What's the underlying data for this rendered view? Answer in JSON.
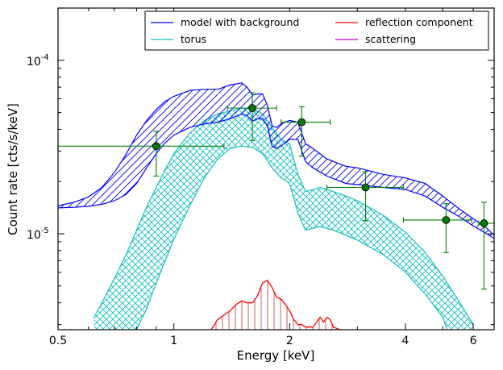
{
  "chart_data": {
    "type": "line",
    "xlabel": "Energy [keV]",
    "ylabel": "Count rate [cts/s/keV]",
    "x_scale": "log",
    "y_scale": "log",
    "xlim": [
      0.5,
      6.8
    ],
    "ylim": [
      2.8e-06,
      0.0002
    ],
    "x_ticks": [
      {
        "value": 0.5,
        "label": "0.5"
      },
      {
        "value": 1,
        "label": "1"
      },
      {
        "value": 2,
        "label": "2"
      },
      {
        "value": 4,
        "label": "4"
      },
      {
        "value": 6,
        "label": "6"
      }
    ],
    "y_ticks": [
      {
        "value": 1e-05,
        "base": "10",
        "exp": "-5"
      },
      {
        "value": 0.0001,
        "base": "10",
        "exp": "-4"
      }
    ],
    "legend_position": "top-right",
    "colors": {
      "model": "#0000ff",
      "torus": "#17bfbf",
      "reflection": "#ff0000",
      "scattering": "#bf00bf",
      "data": "#008000",
      "marker": "#007a00"
    },
    "series": [
      {
        "name": "model with background",
        "kind": "band",
        "x": [
          0.5,
          0.55,
          0.6,
          0.65,
          0.7,
          0.75,
          0.8,
          0.85,
          0.9,
          0.95,
          1.0,
          1.1,
          1.2,
          1.3,
          1.4,
          1.5,
          1.55,
          1.6,
          1.65,
          1.7,
          1.75,
          1.8,
          1.85,
          1.9,
          2.0,
          2.1,
          2.2,
          2.3,
          2.5,
          2.8,
          3.0,
          3.5,
          4.0,
          4.5,
          5.0,
          5.5,
          6.0,
          6.5,
          6.8
        ],
        "upper": [
          1.45e-05,
          1.52e-05,
          1.63e-05,
          1.85e-05,
          2.25e-05,
          2.85e-05,
          3.7e-05,
          4.5e-05,
          5.2e-05,
          5.8e-05,
          6.2e-05,
          6.7e-05,
          6.8e-05,
          6.8e-05,
          7.2e-05,
          7.4e-05,
          7e-05,
          6.3e-05,
          6.4e-05,
          6.4e-05,
          5.5e-05,
          4.2e-05,
          4.1e-05,
          4.3e-05,
          4.5e-05,
          4.4e-05,
          3.3e-05,
          3.1e-05,
          2.7e-05,
          2.45e-05,
          2.4e-05,
          2.2e-05,
          2.1e-05,
          1.95e-05,
          1.65e-05,
          1.4e-05,
          1.22e-05,
          1.08e-05,
          9.8e-06
        ],
        "lower": [
          1.41e-05,
          1.42e-05,
          1.44e-05,
          1.48e-05,
          1.55e-05,
          1.68e-05,
          1.95e-05,
          2.4e-05,
          2.9e-05,
          3.35e-05,
          3.7e-05,
          4.1e-05,
          4.3e-05,
          4.4e-05,
          4.6e-05,
          4.9e-05,
          4.8e-05,
          4.45e-05,
          4.6e-05,
          4.6e-05,
          4.2e-05,
          3.2e-05,
          3.1e-05,
          3.2e-05,
          3.5e-05,
          3.5e-05,
          2.6e-05,
          2.4e-05,
          2.15e-05,
          1.95e-05,
          1.92e-05,
          1.85e-05,
          1.8e-05,
          1.65e-05,
          1.42e-05,
          1.26e-05,
          1.11e-05,
          1e-05,
          9.4e-06
        ]
      },
      {
        "name": "torus",
        "kind": "band",
        "x": [
          0.62,
          0.65,
          0.7,
          0.75,
          0.8,
          0.85,
          0.9,
          0.95,
          1.0,
          1.1,
          1.2,
          1.3,
          1.4,
          1.5,
          1.6,
          1.7,
          1.8,
          1.9,
          2.0,
          2.1,
          2.2,
          2.4,
          2.6,
          2.8,
          3.0,
          3.5,
          4.0,
          4.5,
          5.0,
          5.5,
          5.8,
          6.0
        ],
        "upper": [
          3.3e-06,
          4e-06,
          5.5e-06,
          7.5e-06,
          1.05e-05,
          1.43e-05,
          1.85e-05,
          2.35e-05,
          2.9e-05,
          3.8e-05,
          4.5e-05,
          4.9e-05,
          5.1e-05,
          5.3e-05,
          5.3e-05,
          4.9e-05,
          4.1e-05,
          3.5e-05,
          3.3e-05,
          2.2e-05,
          1.75e-05,
          1.85e-05,
          1.75e-05,
          1.65e-05,
          1.55e-05,
          1.28e-05,
          1.02e-05,
          7.8e-06,
          5.7e-06,
          4.1e-06,
          3.4e-06,
          3e-06
        ],
        "lower": [
          null,
          null,
          null,
          null,
          2.8e-06,
          3.7e-06,
          5.2e-06,
          7e-06,
          9.3e-06,
          1.45e-05,
          2.1e-05,
          2.7e-05,
          3.1e-05,
          3.2e-05,
          3.15e-05,
          2.9e-05,
          2.4e-05,
          2.1e-05,
          1.95e-05,
          1.32e-05,
          1.05e-05,
          1.1e-05,
          1.05e-05,
          9.8e-06,
          9.2e-06,
          7.6e-06,
          6e-06,
          4.5e-06,
          3.3e-06,
          null,
          null,
          null
        ]
      },
      {
        "name": "reflection component",
        "kind": "line",
        "x": [
          1.25,
          1.3,
          1.4,
          1.45,
          1.5,
          1.55,
          1.6,
          1.65,
          1.7,
          1.75,
          1.8,
          1.85,
          1.9,
          1.95,
          2.0,
          2.05,
          2.1,
          2.15,
          2.2,
          2.3,
          2.4,
          2.45,
          2.5,
          2.55,
          2.6,
          2.7
        ],
        "y": [
          2.8e-06,
          3.2e-06,
          3.6e-06,
          3.9e-06,
          4.1e-06,
          4e-06,
          4e-06,
          4.4e-06,
          5.2e-06,
          5.4e-06,
          4.9e-06,
          4.3e-06,
          4.2e-06,
          3.9e-06,
          3.6e-06,
          3.2e-06,
          3e-06,
          3e-06,
          2.9e-06,
          2.9e-06,
          3.3e-06,
          3.1e-06,
          3.3e-06,
          3.2e-06,
          2.9e-06,
          2.8e-06
        ]
      },
      {
        "name": "scattering",
        "kind": "line",
        "x": [],
        "y": []
      }
    ],
    "data_points": [
      {
        "x": 0.9,
        "y": 3.2e-05,
        "xerr": [
          0.5,
          1.35
        ],
        "yerr": [
          2.15e-05,
          3.9e-05
        ]
      },
      {
        "x": 1.6,
        "y": 5.3e-05,
        "xerr": [
          1.38,
          1.85
        ],
        "yerr": [
          3.45e-05,
          6.5e-05
        ]
      },
      {
        "x": 2.15,
        "y": 4.4e-05,
        "xerr": [
          1.9,
          2.55
        ],
        "yerr": [
          2.8e-05,
          5.4e-05
        ]
      },
      {
        "x": 3.15,
        "y": 1.85e-05,
        "xerr": [
          2.5,
          3.95
        ],
        "yerr": [
          1.19e-05,
          2.28e-05
        ]
      },
      {
        "x": 5.1,
        "y": 1.2e-05,
        "xerr": [
          3.95,
          5.95
        ],
        "yerr": [
          7.8e-06,
          1.49e-05
        ]
      },
      {
        "x": 6.4,
        "y": 1.15e-05,
        "xerr": [
          6.2,
          6.8
        ],
        "yerr": [
          4.8e-06,
          1.52e-05
        ]
      }
    ]
  }
}
